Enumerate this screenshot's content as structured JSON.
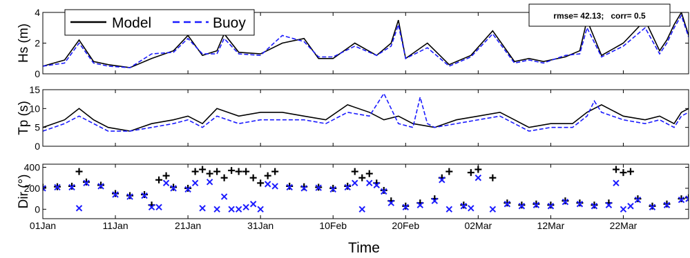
{
  "chart_data": {
    "type": "line",
    "xlabel": "Time",
    "x_tick_labels": [
      "01Jan",
      "11Jan",
      "21Jan",
      "31Jan",
      "10Feb",
      "20Feb",
      "02Mar",
      "12Mar",
      "22Mar"
    ],
    "x_range_days": [
      0,
      89
    ],
    "colors": {
      "model": "#000000",
      "buoy": "#1a1aff"
    },
    "legend": {
      "entries": [
        "Model",
        "Buoy"
      ],
      "placement": "top-left",
      "styles": [
        "solid",
        "dashed"
      ]
    },
    "stats_box": {
      "text": "rmse= 42.13;   corr= 0.5",
      "placement": "top-right"
    },
    "panels": [
      {
        "ylabel": "Hs (m)",
        "ylim": [
          0,
          4
        ],
        "yticks": [
          "0",
          "2",
          "4"
        ],
        "mark": "line",
        "series": [
          {
            "name": "Model",
            "x": [
              0,
              3,
              5,
              7,
              9,
              12,
              15,
              18,
              20,
              22,
              24,
              25,
              27,
              30,
              33,
              36,
              38,
              40,
              43,
              46,
              48,
              49,
              50,
              53,
              56,
              59,
              62,
              65,
              67,
              69,
              72,
              74,
              75,
              77,
              80,
              83,
              85,
              86,
              87,
              88,
              89
            ],
            "y": [
              0.5,
              0.9,
              2.2,
              0.8,
              0.6,
              0.4,
              1.0,
              1.5,
              2.5,
              1.2,
              1.5,
              2.6,
              1.4,
              1.3,
              2.0,
              2.3,
              1.0,
              1.0,
              2.0,
              1.2,
              2.0,
              3.5,
              1.0,
              2.0,
              0.6,
              1.2,
              2.8,
              0.8,
              1.0,
              0.8,
              1.1,
              1.5,
              3.5,
              1.2,
              2.0,
              3.5,
              1.5,
              2.2,
              3.2,
              4.0,
              2.5
            ]
          },
          {
            "name": "Buoy",
            "x": [
              0,
              3,
              5,
              7,
              9,
              12,
              15,
              18,
              20,
              22,
              24,
              25,
              27,
              30,
              33,
              36,
              38,
              40,
              43,
              46,
              48,
              49,
              50,
              53,
              56,
              59,
              62,
              65,
              67,
              69,
              72,
              74,
              75,
              77,
              80,
              83,
              85,
              86,
              87,
              88,
              89
            ],
            "y": [
              0.5,
              0.7,
              2.0,
              0.7,
              0.5,
              0.4,
              1.3,
              1.4,
              2.3,
              1.3,
              1.3,
              2.3,
              1.3,
              1.2,
              2.5,
              2.1,
              1.1,
              1.1,
              1.8,
              1.2,
              1.8,
              3.2,
              1.0,
              1.7,
              0.5,
              1.1,
              2.6,
              0.7,
              0.9,
              0.7,
              1.2,
              1.3,
              3.0,
              1.1,
              1.8,
              3.0,
              1.3,
              2.0,
              3.0,
              3.8,
              2.4
            ]
          }
        ]
      },
      {
        "ylabel": "Tp (s)",
        "ylim": [
          0,
          15
        ],
        "yticks": [
          "0",
          "5",
          "10",
          "15"
        ],
        "mark": "line",
        "series": [
          {
            "name": "Model",
            "x": [
              0,
              3,
              5,
              7,
              9,
              12,
              15,
              18,
              20,
              22,
              24,
              27,
              30,
              33,
              36,
              39,
              42,
              45,
              47,
              49,
              51,
              54,
              57,
              60,
              63,
              65,
              67,
              70,
              73,
              75,
              77,
              80,
              83,
              85,
              87,
              88,
              89
            ],
            "y": [
              5,
              7,
              10,
              7,
              5,
              4,
              6,
              7,
              8,
              6,
              10,
              8,
              9,
              9,
              8,
              7,
              11,
              9,
              7,
              8,
              6,
              5,
              7,
              8,
              9,
              7,
              5,
              6,
              6,
              9,
              11,
              8,
              7,
              8,
              6,
              9,
              10
            ]
          },
          {
            "name": "Buoy",
            "x": [
              0,
              3,
              5,
              7,
              9,
              12,
              15,
              18,
              20,
              22,
              24,
              27,
              30,
              33,
              36,
              39,
              42,
              45,
              47,
              49,
              51,
              52,
              53,
              54,
              57,
              60,
              63,
              65,
              67,
              70,
              73,
              75,
              76,
              77,
              80,
              83,
              85,
              87,
              88,
              89
            ],
            "y": [
              4,
              6,
              8,
              6,
              4,
              4,
              5,
              6,
              7,
              5,
              8,
              6,
              7,
              7,
              7,
              6,
              9,
              8,
              14,
              6,
              5,
              13,
              6,
              5,
              6,
              7,
              8,
              6,
              4,
              5,
              5,
              8,
              12,
              9,
              7,
              6,
              7,
              5,
              8,
              9
            ]
          }
        ]
      },
      {
        "ylabel": "Dir (°)",
        "ylim": [
          -90,
          430
        ],
        "yticks": [
          "0",
          "200",
          "400"
        ],
        "mark": "scatter",
        "series": [
          {
            "name": "Model",
            "marker": "+",
            "x": [
              0,
              2,
              4,
              5,
              6,
              8,
              10,
              12,
              14,
              15,
              16,
              17,
              18,
              20,
              21,
              22,
              23,
              24,
              25,
              26,
              27,
              28,
              29,
              30,
              31,
              32,
              34,
              36,
              38,
              40,
              42,
              43,
              44,
              45,
              46,
              47,
              48,
              50,
              52,
              54,
              55,
              56,
              58,
              59,
              60,
              62,
              64,
              66,
              68,
              70,
              72,
              74,
              76,
              78,
              79,
              80,
              81,
              82,
              84,
              86,
              88,
              89
            ],
            "y": [
              210,
              215,
              220,
              360,
              260,
              230,
              150,
              130,
              140,
              40,
              280,
              320,
              210,
              200,
              360,
              380,
              340,
              360,
              300,
              370,
              360,
              360,
              300,
              250,
              320,
              360,
              220,
              215,
              210,
              200,
              220,
              360,
              300,
              340,
              250,
              180,
              80,
              30,
              60,
              100,
              300,
              360,
              40,
              350,
              380,
              300,
              60,
              40,
              50,
              40,
              80,
              60,
              40,
              60,
              380,
              350,
              360,
              100,
              30,
              50,
              100,
              110
            ]
          },
          {
            "name": "Buoy",
            "marker": "x",
            "x": [
              0,
              2,
              4,
              5,
              6,
              8,
              10,
              12,
              14,
              15,
              16,
              17,
              18,
              20,
              21,
              22,
              23,
              24,
              25,
              26,
              27,
              28,
              29,
              30,
              31,
              32,
              34,
              36,
              38,
              40,
              42,
              43,
              44,
              45,
              46,
              47,
              48,
              50,
              52,
              54,
              55,
              56,
              58,
              59,
              60,
              62,
              64,
              66,
              68,
              70,
              72,
              74,
              76,
              78,
              79,
              80,
              81,
              82,
              84,
              86,
              88,
              89
            ],
            "y": [
              200,
              210,
              210,
              10,
              250,
              220,
              140,
              120,
              130,
              20,
              20,
              250,
              200,
              190,
              250,
              10,
              260,
              0,
              120,
              0,
              0,
              20,
              50,
              0,
              240,
              220,
              210,
              200,
              205,
              190,
              210,
              250,
              0,
              250,
              230,
              170,
              60,
              20,
              40,
              80,
              280,
              0,
              30,
              10,
              300,
              0,
              50,
              30,
              40,
              30,
              70,
              50,
              30,
              40,
              250,
              0,
              30,
              90,
              20,
              40,
              90,
              100
            ]
          }
        ]
      }
    ]
  }
}
